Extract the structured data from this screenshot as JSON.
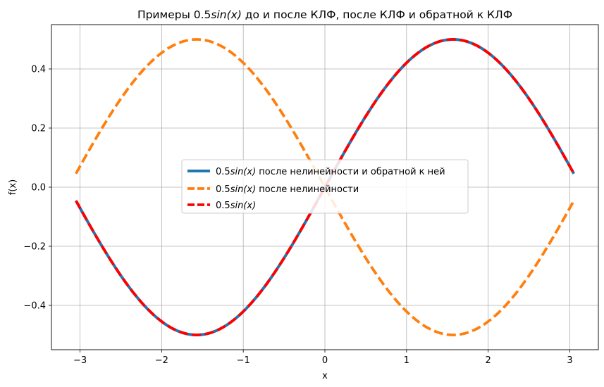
{
  "chart_data": {
    "type": "line",
    "title": "Примеры 0.5sin(x) до и после КЛФ, после КЛФ и обратной к КЛФ",
    "title_parts": {
      "before": "Примеры 0.5",
      "math": "sin(x)",
      "after": " до и после КЛФ, после КЛФ и обратной к КЛФ"
    },
    "xlabel": "x",
    "ylabel": "f(x)",
    "xlim": [
      -3.35,
      3.35
    ],
    "ylim": [
      -0.55,
      0.55
    ],
    "x_range": [
      -3.05,
      3.05
    ],
    "xticks": [
      -3,
      -2,
      -1,
      0,
      1,
      2,
      3
    ],
    "xtick_labels": [
      "−3",
      "−2",
      "−1",
      "0",
      "1",
      "2",
      "3"
    ],
    "yticks": [
      -0.4,
      -0.2,
      0.0,
      0.2,
      0.4
    ],
    "ytick_labels": [
      "−0.4",
      "−0.2",
      "0.0",
      "0.2",
      "0.4"
    ],
    "grid": true,
    "legend_position": "center-right",
    "series": [
      {
        "name": "0.5sin(x) после нелинейности и обратной к ней",
        "legend_parts": {
          "coef": "0.5",
          "math": "sin(x)",
          "rest": " после нелинейности и обратной к ней"
        },
        "formula": "0.5*sin(x)",
        "amplitude": 0.5,
        "color": "#1f77b4",
        "style": "solid"
      },
      {
        "name": "0.5sin(x) после нелинейности",
        "legend_parts": {
          "coef": "0.5",
          "math": "sin(x)",
          "rest": " после нелинейности"
        },
        "formula": "-0.5*sin(x)",
        "amplitude": -0.5,
        "color": "#ff7f0e",
        "style": "dashed"
      },
      {
        "name": "0.5sin(x)",
        "legend_parts": {
          "coef": "0.5",
          "math": "sin(x)",
          "rest": ""
        },
        "formula": "0.5*sin(x)",
        "amplitude": 0.5,
        "color": "#ff0000",
        "style": "dashed"
      }
    ],
    "sample_points": {
      "x": [
        -3.0,
        -2.5,
        -2.0,
        -1.5708,
        -1.0,
        -0.5,
        0.0,
        0.5,
        1.0,
        1.5708,
        2.0,
        2.5,
        3.0
      ],
      "y_sin_half": [
        -0.0706,
        -0.2992,
        -0.4546,
        -0.5,
        -0.4207,
        -0.2397,
        0.0,
        0.2397,
        0.4207,
        0.5,
        0.4546,
        0.2992,
        0.0706
      ]
    }
  }
}
